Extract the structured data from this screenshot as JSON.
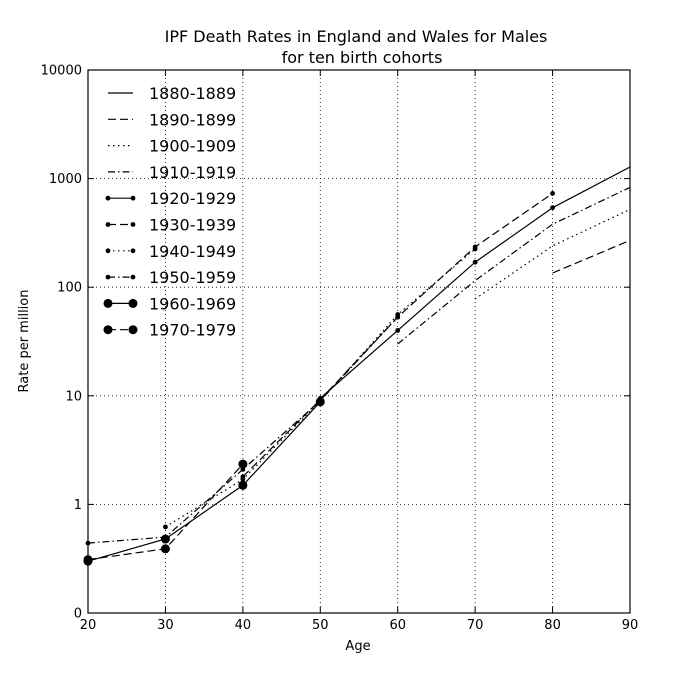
{
  "chart_data": {
    "type": "line",
    "title": [
      "IPF Death Rates in England and Wales for Males",
      "for ten birth cohorts"
    ],
    "xlabel": "Age",
    "ylabel": "Rate per million",
    "xlim": [
      20,
      90
    ],
    "ylim": [
      0.1,
      10000
    ],
    "yscale": "log",
    "x_ticks": [
      20,
      30,
      40,
      50,
      60,
      70,
      80,
      90
    ],
    "y_ticks": [
      {
        "value": 0.1,
        "label": "0"
      },
      {
        "value": 1,
        "label": "1"
      },
      {
        "value": 10,
        "label": "10"
      },
      {
        "value": 100,
        "label": "100"
      },
      {
        "value": 1000,
        "label": "1000"
      },
      {
        "value": 10000,
        "label": "10000"
      }
    ],
    "grid": true,
    "legend_position": "top-left",
    "series": [
      {
        "name": "1880-1889",
        "style": "solid",
        "marker": "none",
        "x": [
          80,
          90
        ],
        "y": [
          540,
          1280
        ]
      },
      {
        "name": "1890-1899",
        "style": "dashed",
        "marker": "none",
        "x": [
          80,
          90
        ],
        "y": [
          135,
          270
        ]
      },
      {
        "name": "1900-1909",
        "style": "dotted",
        "marker": "none",
        "x": [
          70,
          80,
          90
        ],
        "y": [
          78,
          240,
          520
        ]
      },
      {
        "name": "1910-1919",
        "style": "dashdot",
        "marker": "none",
        "x": [
          60,
          70,
          80,
          90
        ],
        "y": [
          30,
          115,
          380,
          830
        ]
      },
      {
        "name": "1920-1929",
        "style": "solid",
        "marker": "small",
        "x": [
          50,
          60,
          70,
          80
        ],
        "y": [
          9.5,
          40,
          170,
          540
        ]
      },
      {
        "name": "1930-1939",
        "style": "dashed",
        "marker": "small",
        "x": [
          40,
          50,
          60,
          70,
          80
        ],
        "y": [
          1.8,
          9.2,
          53,
          235,
          730
        ]
      },
      {
        "name": "1940-1949",
        "style": "dotted",
        "marker": "small",
        "x": [
          30,
          40,
          50,
          60,
          70
        ],
        "y": [
          0.62,
          1.7,
          9.0,
          56,
          225
        ]
      },
      {
        "name": "1950-1959",
        "style": "dashdot",
        "marker": "small",
        "x": [
          20,
          30,
          40,
          50,
          60
        ],
        "y": [
          0.44,
          0.5,
          2.1,
          9.0,
          53
        ]
      },
      {
        "name": "1960-1969",
        "style": "solid",
        "marker": "large",
        "x": [
          20,
          30,
          40,
          50
        ],
        "y": [
          0.3,
          0.48,
          1.5,
          8.8
        ]
      },
      {
        "name": "1970-1979",
        "style": "dashed",
        "marker": "large",
        "x": [
          20,
          30,
          40
        ],
        "y": [
          0.31,
          0.39,
          2.35
        ]
      }
    ]
  }
}
